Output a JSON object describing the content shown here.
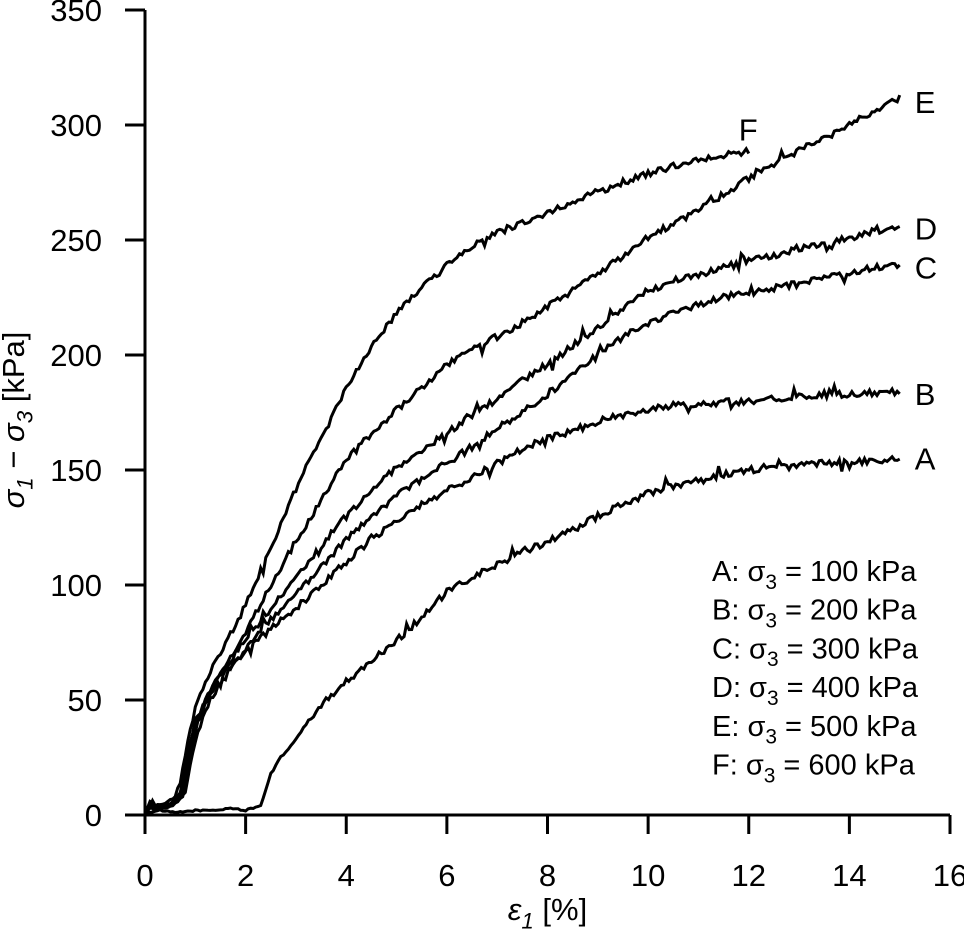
{
  "figure": {
    "background_color": "#ffffff",
    "line_color": "#000000"
  },
  "chart_data": {
    "type": "line",
    "title": "",
    "xlabel": "*ε*~1~ [%]",
    "ylabel": "*σ*~1~ − *σ*~3~ [kPa]",
    "xlim": [
      0,
      16
    ],
    "ylim": [
      0,
      350
    ],
    "xticks": [
      0,
      2,
      4,
      6,
      8,
      10,
      12,
      14,
      16
    ],
    "yticks": [
      0,
      50,
      100,
      150,
      200,
      250,
      300,
      350
    ],
    "grid": false,
    "legend": {
      "position": "lower-right",
      "entries": [
        "A: σ_3_ = 100 kPa",
        "B: σ_3_ = 200 kPa",
        "C: σ_3_ = 300 kPa",
        "D: σ_3_ = 400 kPa",
        "E: σ_3_ = 500 kPa",
        "F: σ_3_ = 600 kPa"
      ]
    },
    "series": [
      {
        "name": "A",
        "sigma3_kPa": 100,
        "color": "#000000",
        "label": "A",
        "label_pos": [
          15.3,
          155
        ],
        "points": [
          [
            0,
            1
          ],
          [
            0.3,
            2
          ],
          [
            0.6,
            1
          ],
          [
            1,
            2
          ],
          [
            1.4,
            2
          ],
          [
            1.7,
            3
          ],
          [
            2,
            2
          ],
          [
            2.3,
            4
          ],
          [
            2.5,
            18
          ],
          [
            2.7,
            25
          ],
          [
            3,
            33
          ],
          [
            3.3,
            42
          ],
          [
            3.6,
            50
          ],
          [
            4,
            58
          ],
          [
            4.5,
            67
          ],
          [
            5,
            76
          ],
          [
            5.5,
            86
          ],
          [
            6,
            97
          ],
          [
            6.5,
            103
          ],
          [
            7,
            109
          ],
          [
            7.5,
            114
          ],
          [
            8,
            119
          ],
          [
            8.5,
            124
          ],
          [
            9,
            130
          ],
          [
            9.5,
            135
          ],
          [
            10,
            140
          ],
          [
            10.5,
            143
          ],
          [
            11,
            146
          ],
          [
            11.5,
            148
          ],
          [
            12,
            150
          ],
          [
            12.5,
            151
          ],
          [
            13,
            152
          ],
          [
            13.5,
            153
          ],
          [
            14,
            154
          ],
          [
            14.5,
            154
          ],
          [
            15,
            155
          ]
        ]
      },
      {
        "name": "B",
        "sigma3_kPa": 200,
        "color": "#000000",
        "label": "B",
        "label_pos": [
          15.3,
          183
        ],
        "points": [
          [
            0,
            0
          ],
          [
            0.1,
            4
          ],
          [
            0.2,
            2
          ],
          [
            0.4,
            3
          ],
          [
            0.6,
            5
          ],
          [
            0.75,
            8
          ],
          [
            0.85,
            18
          ],
          [
            0.95,
            30
          ],
          [
            1.05,
            40
          ],
          [
            1.2,
            48
          ],
          [
            1.4,
            56
          ],
          [
            1.6,
            62
          ],
          [
            1.8,
            67
          ],
          [
            2,
            71
          ],
          [
            2.5,
            81
          ],
          [
            3,
            90
          ],
          [
            3.5,
            100
          ],
          [
            4,
            110
          ],
          [
            4.5,
            120
          ],
          [
            5,
            128
          ],
          [
            5.5,
            135
          ],
          [
            6,
            141
          ],
          [
            6.5,
            147
          ],
          [
            7,
            153
          ],
          [
            7.5,
            159
          ],
          [
            8,
            164
          ],
          [
            8.5,
            167
          ],
          [
            9,
            171
          ],
          [
            9.5,
            174
          ],
          [
            10,
            176
          ],
          [
            10.5,
            178
          ],
          [
            11,
            179
          ],
          [
            12,
            180
          ],
          [
            13,
            182
          ],
          [
            14,
            183
          ],
          [
            15,
            184
          ]
        ]
      },
      {
        "name": "C",
        "sigma3_kPa": 300,
        "color": "#000000",
        "label": "C",
        "label_pos": [
          15.3,
          238
        ],
        "points": [
          [
            0,
            0
          ],
          [
            0.15,
            6
          ],
          [
            0.25,
            3
          ],
          [
            0.45,
            4
          ],
          [
            0.65,
            6
          ],
          [
            0.8,
            10
          ],
          [
            0.9,
            22
          ],
          [
            1,
            32
          ],
          [
            1.15,
            42
          ],
          [
            1.3,
            50
          ],
          [
            1.5,
            57
          ],
          [
            1.7,
            63
          ],
          [
            2,
            72
          ],
          [
            2.5,
            85
          ],
          [
            3,
            96
          ],
          [
            3.5,
            108
          ],
          [
            4,
            120
          ],
          [
            4.5,
            130
          ],
          [
            5,
            139
          ],
          [
            5.5,
            146
          ],
          [
            6,
            153
          ],
          [
            6.5,
            160
          ],
          [
            7,
            168
          ],
          [
            7.5,
            175
          ],
          [
            8,
            183
          ],
          [
            8.5,
            191
          ],
          [
            9,
            200
          ],
          [
            9.5,
            208
          ],
          [
            10,
            214
          ],
          [
            10.5,
            218
          ],
          [
            11,
            222
          ],
          [
            11.5,
            225
          ],
          [
            12,
            227
          ],
          [
            12.5,
            229
          ],
          [
            13,
            231
          ],
          [
            13.5,
            233
          ],
          [
            14,
            236
          ],
          [
            14.5,
            238
          ],
          [
            15,
            239
          ]
        ]
      },
      {
        "name": "D",
        "sigma3_kPa": 400,
        "color": "#000000",
        "label": "D",
        "label_pos": [
          15.3,
          255
        ],
        "points": [
          [
            0,
            0
          ],
          [
            0.1,
            3
          ],
          [
            0.3,
            4
          ],
          [
            0.5,
            5
          ],
          [
            0.7,
            8
          ],
          [
            0.8,
            16
          ],
          [
            0.9,
            28
          ],
          [
            1,
            38
          ],
          [
            1.15,
            47
          ],
          [
            1.3,
            54
          ],
          [
            1.5,
            61
          ],
          [
            1.7,
            67
          ],
          [
            2,
            76
          ],
          [
            2.5,
            90
          ],
          [
            3,
            103
          ],
          [
            3.5,
            117
          ],
          [
            4,
            130
          ],
          [
            4.5,
            141
          ],
          [
            5,
            151
          ],
          [
            5.5,
            159
          ],
          [
            6,
            166
          ],
          [
            6.5,
            174
          ],
          [
            7,
            181
          ],
          [
            7.5,
            189
          ],
          [
            8,
            196
          ],
          [
            8.5,
            204
          ],
          [
            9,
            212
          ],
          [
            9.5,
            220
          ],
          [
            10,
            228
          ],
          [
            10.5,
            232
          ],
          [
            11,
            235
          ],
          [
            11.5,
            238
          ],
          [
            12,
            241
          ],
          [
            12.5,
            243
          ],
          [
            13,
            246
          ],
          [
            13.5,
            248
          ],
          [
            14,
            251
          ],
          [
            14.5,
            254
          ],
          [
            15,
            256
          ]
        ]
      },
      {
        "name": "E",
        "sigma3_kPa": 500,
        "color": "#000000",
        "label": "E",
        "label_pos": [
          15.3,
          310
        ],
        "points": [
          [
            0,
            0
          ],
          [
            0.1,
            5
          ],
          [
            0.2,
            3
          ],
          [
            0.4,
            4
          ],
          [
            0.6,
            6
          ],
          [
            0.7,
            10
          ],
          [
            0.8,
            20
          ],
          [
            0.9,
            32
          ],
          [
            1,
            40
          ],
          [
            1.2,
            50
          ],
          [
            1.4,
            58
          ],
          [
            1.6,
            65
          ],
          [
            1.8,
            72
          ],
          [
            2,
            80
          ],
          [
            2.5,
            100
          ],
          [
            3,
            119
          ],
          [
            3.5,
            137
          ],
          [
            4,
            154
          ],
          [
            4.5,
            166
          ],
          [
            5,
            176
          ],
          [
            5.5,
            186
          ],
          [
            6,
            196
          ],
          [
            6.5,
            202
          ],
          [
            7,
            208
          ],
          [
            7.5,
            214
          ],
          [
            8,
            221
          ],
          [
            8.5,
            228
          ],
          [
            9,
            235
          ],
          [
            9.5,
            243
          ],
          [
            10,
            251
          ],
          [
            10.5,
            257
          ],
          [
            11,
            263
          ],
          [
            11.5,
            270
          ],
          [
            12,
            277
          ],
          [
            12.5,
            283
          ],
          [
            13,
            289
          ],
          [
            13.5,
            294
          ],
          [
            14,
            300
          ],
          [
            14.5,
            306
          ],
          [
            15,
            312
          ]
        ]
      },
      {
        "name": "F",
        "sigma3_kPa": 600,
        "color": "#000000",
        "label": "F",
        "label_pos": [
          11.8,
          298
        ],
        "points": [
          [
            0,
            0
          ],
          [
            0.1,
            6
          ],
          [
            0.2,
            4
          ],
          [
            0.4,
            5
          ],
          [
            0.6,
            8
          ],
          [
            0.7,
            14
          ],
          [
            0.8,
            26
          ],
          [
            0.9,
            38
          ],
          [
            1,
            47
          ],
          [
            1.2,
            58
          ],
          [
            1.4,
            67
          ],
          [
            1.6,
            75
          ],
          [
            1.8,
            83
          ],
          [
            2,
            91
          ],
          [
            2.5,
            116
          ],
          [
            3,
            142
          ],
          [
            3.5,
            164
          ],
          [
            4,
            185
          ],
          [
            4.5,
            204
          ],
          [
            5,
            218
          ],
          [
            5.5,
            229
          ],
          [
            6,
            239
          ],
          [
            6.5,
            247
          ],
          [
            7,
            253
          ],
          [
            7.5,
            258
          ],
          [
            8,
            262
          ],
          [
            8.5,
            266
          ],
          [
            9,
            271
          ],
          [
            9.5,
            275
          ],
          [
            10,
            279
          ],
          [
            10.5,
            282
          ],
          [
            11,
            285
          ],
          [
            11.5,
            287
          ],
          [
            12,
            288
          ]
        ]
      }
    ]
  }
}
